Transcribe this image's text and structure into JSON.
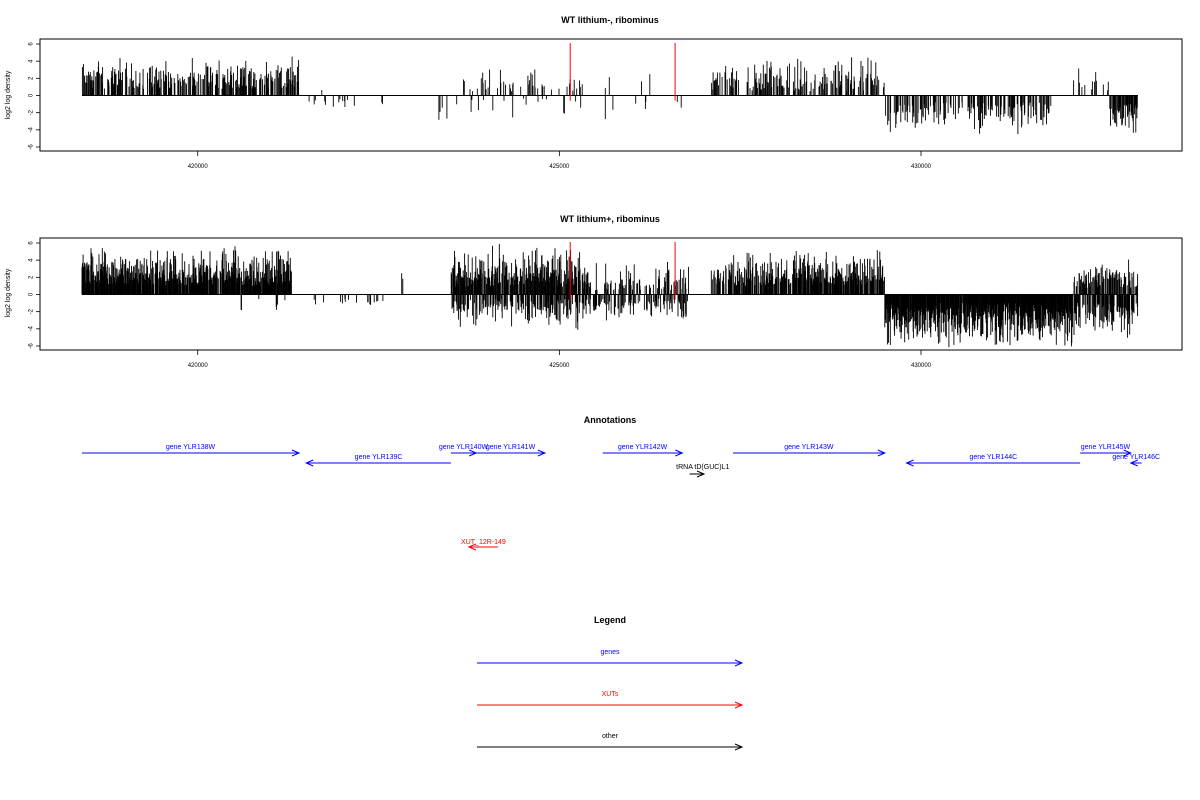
{
  "colors": {
    "gene": "#0000ff",
    "xut": "#ff0000",
    "other": "#000000",
    "marker": "#ff0000"
  },
  "chart_data": [
    {
      "type": "bar",
      "title": "WT lithium-, ribominus",
      "ylabel": "log2 log density",
      "xlim": [
        418400,
        433000
      ],
      "ylim": [
        -6,
        6
      ],
      "xticks": [
        420000,
        425000,
        430000
      ],
      "yticks": [
        -6,
        -4,
        -2,
        0,
        2,
        4,
        6
      ],
      "grid": false,
      "markers_x": [
        425150,
        426600
      ],
      "regions": [
        {
          "x0": 418400,
          "x1": 421400,
          "sign": 1,
          "min": 0.8,
          "max": 4.8,
          "density": 0.45
        },
        {
          "x0": 421400,
          "x1": 422600,
          "sign": -1,
          "min": 0.4,
          "max": 1.5,
          "density": 0.04
        },
        {
          "x0": 421700,
          "x1": 421800,
          "sign": 1,
          "min": 0.5,
          "max": 1.8,
          "density": 0.1
        },
        {
          "x0": 423300,
          "x1": 423600,
          "sign": -1,
          "min": 1.0,
          "max": 4.2,
          "density": 0.08
        },
        {
          "x0": 423600,
          "x1": 425300,
          "sign": 1,
          "min": 0.5,
          "max": 3.6,
          "density": 0.12
        },
        {
          "x0": 423700,
          "x1": 425300,
          "sign": -1,
          "min": 0.3,
          "max": 3.0,
          "density": 0.05
        },
        {
          "x0": 425300,
          "x1": 426700,
          "sign": 1,
          "min": 0.5,
          "max": 3.0,
          "density": 0.03
        },
        {
          "x0": 425300,
          "x1": 426700,
          "sign": -1,
          "min": 0.5,
          "max": 3.0,
          "density": 0.02
        },
        {
          "x0": 427100,
          "x1": 429500,
          "sign": 1,
          "min": 0.5,
          "max": 4.8,
          "density": 0.3
        },
        {
          "x0": 429500,
          "x1": 431800,
          "sign": -1,
          "min": 0.8,
          "max": 5.0,
          "density": 0.3
        },
        {
          "x0": 432100,
          "x1": 432600,
          "sign": 1,
          "min": 0.5,
          "max": 4.0,
          "density": 0.12
        },
        {
          "x0": 432600,
          "x1": 433000,
          "sign": -1,
          "min": 1.0,
          "max": 5.0,
          "density": 0.6
        }
      ]
    },
    {
      "type": "bar",
      "title": "WT lithium+, ribominus",
      "ylabel": "log2 log density",
      "xlim": [
        418400,
        433000
      ],
      "ylim": [
        -6,
        6
      ],
      "xticks": [
        420000,
        425000,
        430000
      ],
      "yticks": [
        -6,
        -4,
        -2,
        0,
        2,
        4,
        6
      ],
      "grid": false,
      "markers_x": [
        425150,
        426600
      ],
      "regions": [
        {
          "x0": 418400,
          "x1": 421300,
          "sign": 1,
          "min": 1.0,
          "max": 5.8,
          "density": 0.85
        },
        {
          "x0": 420600,
          "x1": 422600,
          "sign": -1,
          "min": 0.5,
          "max": 2.6,
          "density": 0.06
        },
        {
          "x0": 422800,
          "x1": 422900,
          "sign": 1,
          "min": 1.5,
          "max": 2.6,
          "density": 0.1
        },
        {
          "x0": 423500,
          "x1": 425300,
          "sign": 1,
          "min": 0.8,
          "max": 6.2,
          "density": 0.75
        },
        {
          "x0": 423500,
          "x1": 425300,
          "sign": -1,
          "min": 0.5,
          "max": 4.2,
          "density": 0.45
        },
        {
          "x0": 425300,
          "x1": 426800,
          "sign": 1,
          "min": 0.5,
          "max": 4.2,
          "density": 0.3
        },
        {
          "x0": 425300,
          "x1": 426800,
          "sign": -1,
          "min": 0.5,
          "max": 3.2,
          "density": 0.3
        },
        {
          "x0": 427100,
          "x1": 429500,
          "sign": 1,
          "min": 1.0,
          "max": 5.5,
          "density": 0.6
        },
        {
          "x0": 429500,
          "x1": 432100,
          "sign": -1,
          "min": 1.0,
          "max": 6.5,
          "density": 0.9
        },
        {
          "x0": 432100,
          "x1": 433000,
          "sign": 1,
          "min": 0.8,
          "max": 4.8,
          "density": 0.5
        },
        {
          "x0": 432100,
          "x1": 433000,
          "sign": -1,
          "min": 1.0,
          "max": 5.3,
          "density": 0.55
        }
      ]
    }
  ],
  "annotations": {
    "title": "Annotations",
    "genes": [
      {
        "label": "gene YLR138W",
        "start": 418400,
        "end": 421400,
        "strand": "+",
        "row": 0
      },
      {
        "label": "gene YLR139C",
        "start": 421500,
        "end": 423500,
        "strand": "-",
        "row": 1
      },
      {
        "label": "gene YLR140W",
        "start": 423500,
        "end": 423850,
        "strand": "+",
        "row": 0
      },
      {
        "label": "gene YLR141W",
        "start": 423850,
        "end": 424800,
        "strand": "+",
        "row": 0
      },
      {
        "label": "gene YLR142W",
        "start": 425600,
        "end": 426700,
        "strand": "+",
        "row": 0
      },
      {
        "label": "gene YLR143W",
        "start": 427400,
        "end": 429500,
        "strand": "+",
        "row": 0
      },
      {
        "label": "gene YLR144C",
        "start": 429800,
        "end": 432200,
        "strand": "-",
        "row": 1
      },
      {
        "label": "gene YLR145W",
        "start": 432200,
        "end": 432900,
        "strand": "+",
        "row": 0
      },
      {
        "label": "gene YLR146C",
        "start": 432900,
        "end": 433050,
        "strand": "-",
        "row": 1
      }
    ],
    "other": [
      {
        "label": "tRNA tD(GUC)L1",
        "start": 426800,
        "end": 427000,
        "strand": "+"
      }
    ],
    "xuts": [
      {
        "label": "XUT_12R-149",
        "start": 423750,
        "end": 424150,
        "strand": "-"
      }
    ]
  },
  "legend": {
    "title": "Legend",
    "items": [
      {
        "label": "genes",
        "color": "#0000ff"
      },
      {
        "label": "XUTs",
        "color": "#ff0000"
      },
      {
        "label": "other",
        "color": "#000000"
      }
    ]
  }
}
